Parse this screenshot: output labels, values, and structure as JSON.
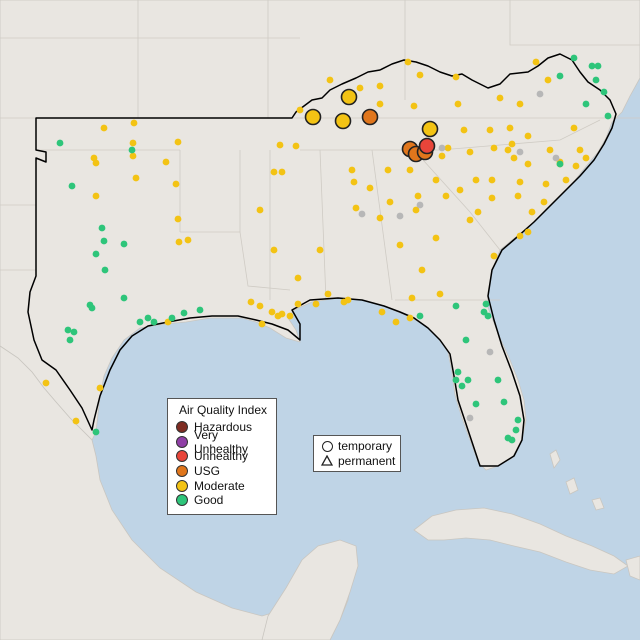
{
  "legend": {
    "title": "Air Quality Index",
    "categories": [
      {
        "label": "Hazardous",
        "color": "#7e2c22"
      },
      {
        "label": "Very Unhealthy",
        "color": "#8f3fa6"
      },
      {
        "label": "Unhealthy",
        "color": "#e8453a"
      },
      {
        "label": "USG",
        "color": "#e0761c"
      },
      {
        "label": "Moderate",
        "color": "#f3c314"
      },
      {
        "label": "Good",
        "color": "#2ec57a"
      }
    ]
  },
  "shape_legend": {
    "temporary_label": "temporary",
    "permanent_label": "permanent"
  },
  "colors": {
    "ocean": "#bfd4e6",
    "land": "#e9e6e1",
    "region_border": "#000000",
    "no_data_monitor": "#b7b7b7"
  }
}
